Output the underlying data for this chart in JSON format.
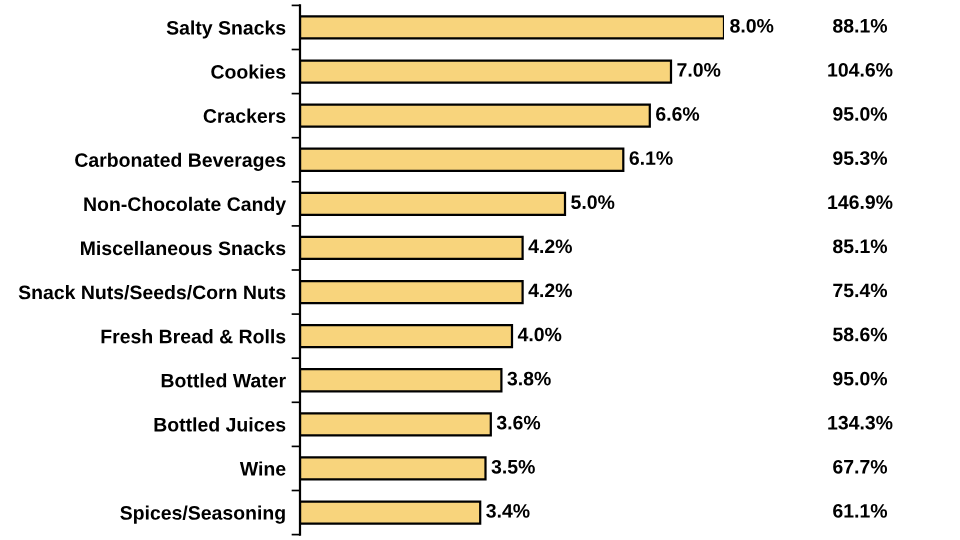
{
  "chart_data": {
    "type": "bar",
    "orientation": "horizontal",
    "tick_labels": "y",
    "categories": [
      "Salty Snacks",
      "Cookies",
      "Crackers",
      "Carbonated Beverages",
      "Non-Chocolate Candy",
      "Miscellaneous Snacks",
      "Snack Nuts/Seeds/Corn Nuts",
      "Fresh Bread & Rolls",
      "Bottled Water",
      "Bottled Juices",
      "Wine",
      "Spices/Seasoning"
    ],
    "y2_categories": [
      "88.1%",
      "104.6%",
      "95.0%",
      "95.3%",
      "146.9%",
      "85.1%",
      "75.4%",
      "58.6%",
      "95.0%",
      "134.3%",
      "67.7%",
      "61.1%"
    ],
    "series": [
      {
        "color": "#f8d47c",
        "values": [
          8.0,
          7.0,
          6.6,
          6.1,
          5.0,
          4.2,
          4.2,
          4.0,
          3.8,
          3.6,
          3.5,
          3.4
        ],
        "value_labels": [
          "8.0%",
          "7.0%",
          "6.6%",
          "6.1%",
          "5.0%",
          "4.2%",
          "4.2%",
          "4.0%",
          "3.8%",
          "3.6%",
          "3.5%",
          "3.4%"
        ]
      }
    ]
  }
}
